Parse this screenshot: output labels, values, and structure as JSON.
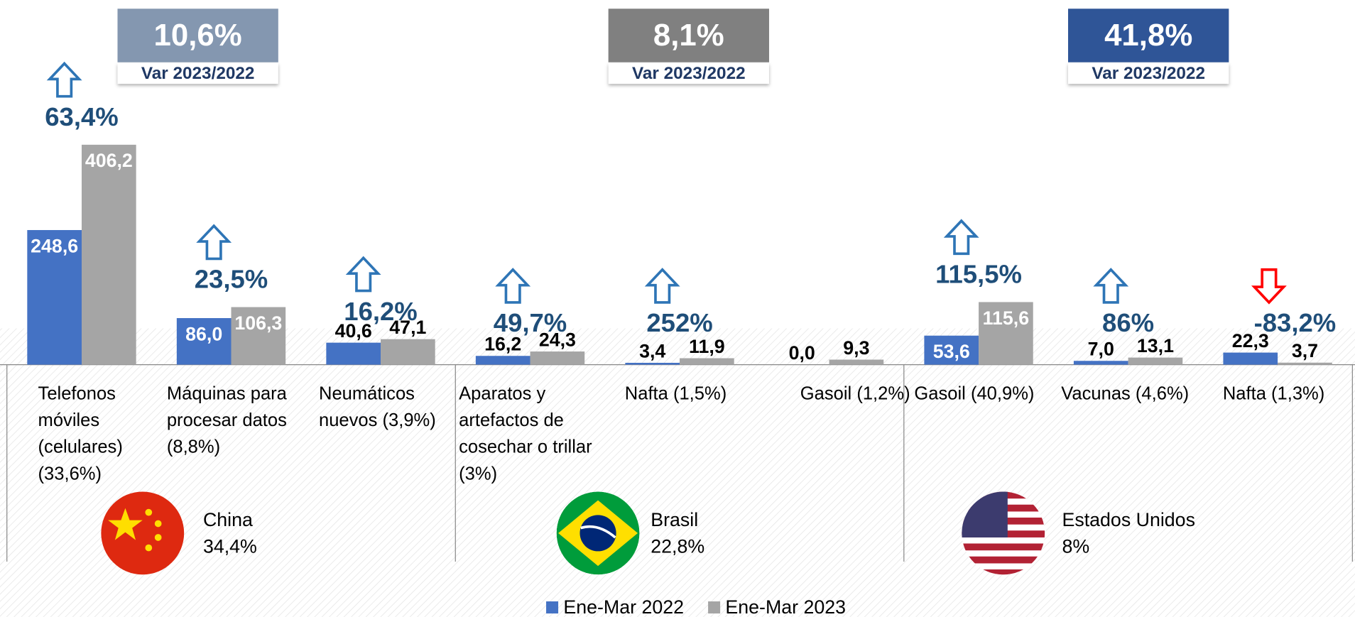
{
  "chart_data": {
    "type": "bar",
    "categories": [
      "Telefonos móviles (celulares) (33,6%)",
      "Máquinas para procesar datos (8,8%)",
      "Neumáticos nuevos (3,9%)",
      "Aparatos y artefactos de cosechar o trillar (3%)",
      "Nafta (1,5%)",
      "Gasoil (1,2%)",
      "Gasoil (40,9%)",
      "Vacunas (4,6%)",
      "Nafta (1,3%)"
    ],
    "series": [
      {
        "name": "Ene-Mar 2022",
        "color": "#4472c4",
        "values": [
          248.6,
          86.0,
          40.6,
          16.2,
          3.4,
          0.0,
          53.6,
          7.0,
          22.3
        ],
        "value_labels": [
          "248,6",
          "86,0",
          "40,6",
          "16,2",
          "3,4",
          "0,0",
          "53,6",
          "7,0",
          "22,3"
        ]
      },
      {
        "name": "Ene-Mar 2023",
        "color": "#a5a5a5",
        "values": [
          406.2,
          106.3,
          47.1,
          24.3,
          11.9,
          9.3,
          115.6,
          13.1,
          3.7
        ],
        "value_labels": [
          "406,2",
          "106,3",
          "47,1",
          "24,3",
          "11,9",
          "9,3",
          "115,6",
          "13,1",
          "3,7"
        ]
      }
    ],
    "changes": [
      63.4,
      23.5,
      16.2,
      49.7,
      252,
      null,
      115.5,
      86,
      -83.2
    ],
    "change_labels": [
      "63,4%",
      "23,5%",
      "16,2%",
      "49,7%",
      "252%",
      null,
      "115,5%",
      "86%",
      "-83,2%"
    ],
    "ylim": [
      0,
      450
    ],
    "variation_label": "Var 2023/2022",
    "groups": [
      {
        "name": "China",
        "share": "34,4%",
        "variation": "10,6%",
        "color": "#8497b0"
      },
      {
        "name": "Brasil",
        "share": "22,8%",
        "variation": "8,1%",
        "color": "#808080"
      },
      {
        "name": "Estados Unidos",
        "share": "8%",
        "variation": "41,8%",
        "color": "#2f5597"
      }
    ]
  }
}
